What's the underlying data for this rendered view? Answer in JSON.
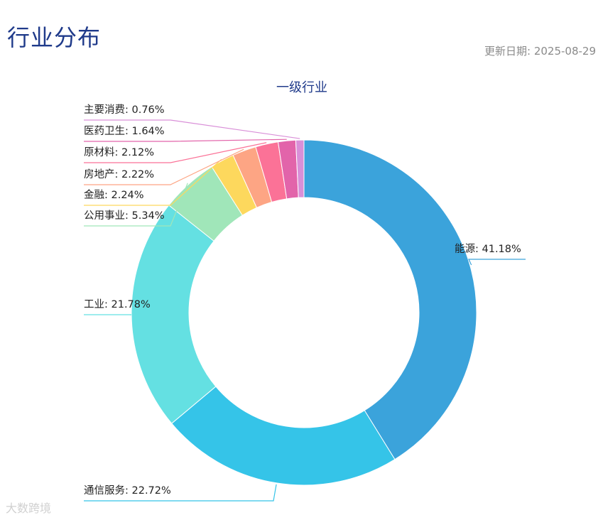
{
  "page": {
    "title": "行业分布",
    "update_date": "更新日期: 2025-08-29"
  },
  "watermark": "大数跨境",
  "chart_data": {
    "type": "donut",
    "title": "一级行业",
    "slices": [
      {
        "name": "能源",
        "value": 41.18,
        "label": "能源: 41.18%",
        "color": "#3ba3db"
      },
      {
        "name": "通信服务",
        "value": 22.72,
        "label": "通信服务: 22.72%",
        "color": "#35c4e8"
      },
      {
        "name": "工业",
        "value": 21.78,
        "label": "工业: 21.78%",
        "color": "#64e0e2"
      },
      {
        "name": "公用事业",
        "value": 5.34,
        "label": "公用事业: 5.34%",
        "color": "#a0e6b9"
      },
      {
        "name": "金融",
        "value": 2.24,
        "label": "金融: 2.24%",
        "color": "#fdd85d"
      },
      {
        "name": "房地产",
        "value": 2.22,
        "label": "房地产: 2.22%",
        "color": "#fda584"
      },
      {
        "name": "原材料",
        "value": 2.12,
        "label": "原材料: 2.12%",
        "color": "#fb7297"
      },
      {
        "name": "医药卫生",
        "value": 1.64,
        "label": "医药卫生: 1.64%",
        "color": "#e264aa"
      },
      {
        "name": "主要消费",
        "value": 0.76,
        "label": "主要消费: 0.76%",
        "color": "#d98fd8"
      }
    ]
  }
}
